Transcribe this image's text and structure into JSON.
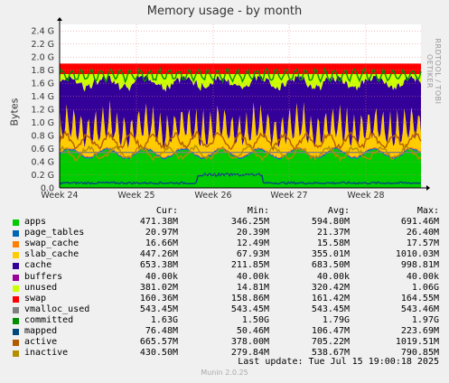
{
  "title": "Memory usage - by month",
  "vertical_label": "Bytes",
  "watermark": "RRDTOOL / TOBI OETIKER",
  "legend_headers": {
    "cur": "Cur:",
    "min": "Min:",
    "avg": "Avg:",
    "max": "Max:"
  },
  "legend": [
    {
      "name": "apps",
      "color": "#00cc00",
      "cur": "471.38M",
      "min": "346.25M",
      "avg": "594.80M",
      "max": "691.46M"
    },
    {
      "name": "page_tables",
      "color": "#0066b3",
      "cur": "20.97M",
      "min": "20.39M",
      "avg": "21.37M",
      "max": "26.40M"
    },
    {
      "name": "swap_cache",
      "color": "#ff8000",
      "cur": "16.66M",
      "min": "12.49M",
      "avg": "15.58M",
      "max": "17.57M"
    },
    {
      "name": "slab_cache",
      "color": "#ffcc00",
      "cur": "447.26M",
      "min": "67.93M",
      "avg": "355.01M",
      "max": "1010.03M"
    },
    {
      "name": "cache",
      "color": "#330099",
      "cur": "653.38M",
      "min": "211.85M",
      "avg": "683.50M",
      "max": "998.81M"
    },
    {
      "name": "buffers",
      "color": "#990099",
      "cur": "40.00k",
      "min": "40.00k",
      "avg": "40.00k",
      "max": "40.00k"
    },
    {
      "name": "unused",
      "color": "#ccff00",
      "cur": "381.02M",
      "min": "14.81M",
      "avg": "320.42M",
      "max": "1.06G"
    },
    {
      "name": "swap",
      "color": "#ff0000",
      "cur": "160.36M",
      "min": "158.86M",
      "avg": "161.42M",
      "max": "164.55M"
    },
    {
      "name": "vmalloc_used",
      "color": "#808080",
      "cur": "543.45M",
      "min": "543.45M",
      "avg": "543.45M",
      "max": "543.46M"
    },
    {
      "name": "committed",
      "color": "#008f00",
      "cur": "1.63G",
      "min": "1.50G",
      "avg": "1.79G",
      "max": "1.97G"
    },
    {
      "name": "mapped",
      "color": "#00487d",
      "cur": "76.48M",
      "min": "50.46M",
      "avg": "106.47M",
      "max": "223.69M"
    },
    {
      "name": "active",
      "color": "#b35a00",
      "cur": "665.57M",
      "min": "378.00M",
      "avg": "705.22M",
      "max": "1019.51M"
    },
    {
      "name": "inactive",
      "color": "#b38f00",
      "cur": "430.50M",
      "min": "279.84M",
      "avg": "538.67M",
      "max": "790.85M"
    }
  ],
  "last_update": "Last update:  Tue Jul 15 19:00:18 2025",
  "footer": "Munin 2.0.25",
  "chart_data": {
    "type": "area",
    "title": "Memory usage - by month",
    "ylabel": "Bytes",
    "x_categories": [
      "Week 24",
      "Week 25",
      "Week 26",
      "Week 27",
      "Week 28"
    ],
    "y_ticks": [
      "0.0",
      "0.2 G",
      "0.4 G",
      "0.6 G",
      "0.8 G",
      "1.0 G",
      "1.2 G",
      "1.4 G",
      "1.6 G",
      "1.8 G",
      "2.0 G",
      "2.2 G",
      "2.4 G"
    ],
    "ylim": [
      0,
      2.5
    ],
    "y_unit": "G",
    "grid": true,
    "stack_order": [
      "apps",
      "page_tables",
      "swap_cache",
      "slab_cache",
      "cache",
      "buffers",
      "unused",
      "swap"
    ],
    "line_series": [
      "vmalloc_used",
      "committed",
      "mapped",
      "active",
      "inactive"
    ]
  }
}
